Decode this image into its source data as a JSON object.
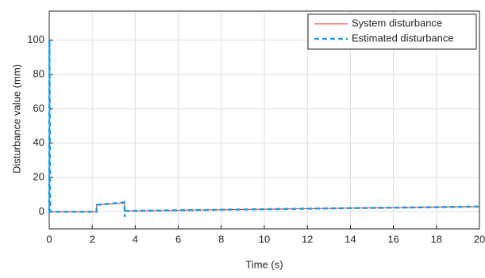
{
  "chart_data": {
    "type": "line",
    "x_label": "Time (s)",
    "y_label": "Disturbance value (mm)",
    "x": [
      0,
      0.01,
      0.05,
      2.2,
      2.21,
      3.5,
      3.51,
      3.55,
      20
    ],
    "series": [
      {
        "name": "System disturbance",
        "color": "#e8251d",
        "style": "solid",
        "values": [
          0,
          0,
          0,
          0,
          4,
          5,
          0.5,
          0.5,
          3
        ]
      },
      {
        "name": "Estimated disturbance",
        "color": "#1e9ee0",
        "style": "dashed",
        "values": [
          0,
          100,
          0,
          0,
          4,
          5.5,
          -3,
          0.5,
          3
        ]
      }
    ],
    "xlim": [
      0,
      20
    ],
    "xticks": [
      0,
      2,
      4,
      6,
      8,
      10,
      12,
      14,
      16,
      18,
      20
    ],
    "ylim": [
      -10,
      117
    ],
    "yticks": [
      0,
      20,
      40,
      60,
      80,
      100
    ],
    "grid": true,
    "legend": "top-right"
  }
}
